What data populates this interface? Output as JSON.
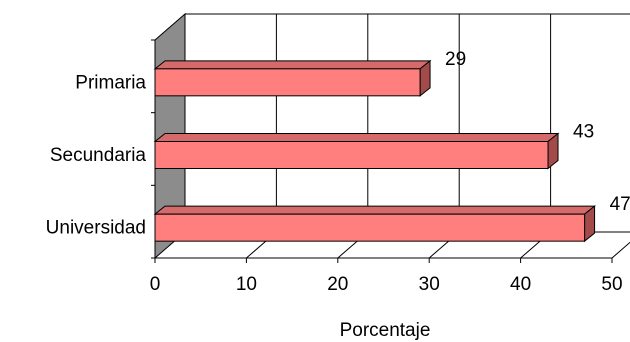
{
  "chart_data": {
    "type": "bar",
    "orientation": "horizontal",
    "style": "3d",
    "categories": [
      "Primaria",
      "Secundaria",
      "Universidad"
    ],
    "values": [
      29,
      43,
      47
    ],
    "data_labels": [
      "29",
      "43",
      "47"
    ],
    "title": "",
    "xlabel": "Porcentaje",
    "ylabel": "",
    "xlim": [
      0,
      50
    ],
    "xticks": [
      0,
      10,
      20,
      30,
      40,
      50
    ],
    "xtick_labels": [
      "0",
      "10",
      "20",
      "30",
      "40",
      "50"
    ],
    "grid": true,
    "legend": "none",
    "colors": {
      "bar_front": "#FF7F7F",
      "bar_side": "#A34A4A",
      "bar_top": "#D46A6A",
      "wall_side": "#8C8C8C",
      "grid": "#000000"
    }
  }
}
